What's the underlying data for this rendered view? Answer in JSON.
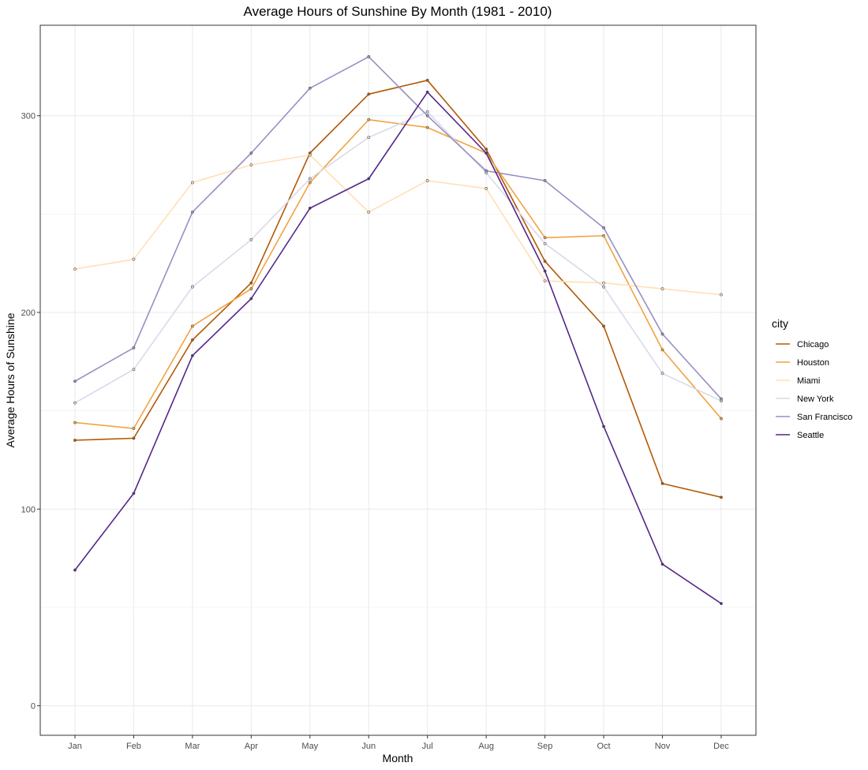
{
  "chart_data": {
    "type": "line",
    "title": "Average Hours of Sunshine By Month (1981 - 2010)",
    "xlabel": "Month",
    "ylabel": "Average Hours of Sunshine",
    "categories": [
      "Jan",
      "Feb",
      "Mar",
      "Apr",
      "May",
      "Jun",
      "Jul",
      "Aug",
      "Sep",
      "Oct",
      "Nov",
      "Dec"
    ],
    "ylim": [
      -15,
      346
    ],
    "yticks": [
      0,
      100,
      200,
      300
    ],
    "grid": true,
    "legend": {
      "title": "city",
      "position": "right"
    },
    "series": [
      {
        "name": "Chicago",
        "color": "#b35806",
        "values": [
          135,
          136,
          186,
          215,
          281,
          311,
          318,
          283,
          226,
          193,
          113,
          106
        ]
      },
      {
        "name": "Houston",
        "color": "#f1a340",
        "values": [
          144,
          141,
          193,
          212,
          266,
          298,
          294,
          281,
          238,
          239,
          181,
          146
        ]
      },
      {
        "name": "Miami",
        "color": "#fee0b6",
        "values": [
          222,
          227,
          266,
          275,
          280,
          251,
          267,
          263,
          216,
          215,
          212,
          209
        ]
      },
      {
        "name": "New York",
        "color": "#d8daeb",
        "values": [
          154,
          171,
          213,
          237,
          268,
          289,
          302,
          271,
          235,
          213,
          169,
          155
        ]
      },
      {
        "name": "San Francisco",
        "color": "#998ec3",
        "values": [
          165,
          182,
          251,
          281,
          314,
          330,
          300,
          272,
          267,
          243,
          189,
          156
        ]
      },
      {
        "name": "Seattle",
        "color": "#542788",
        "values": [
          69,
          108,
          178,
          207,
          253,
          268,
          312,
          281,
          221,
          142,
          72,
          52
        ]
      }
    ]
  }
}
